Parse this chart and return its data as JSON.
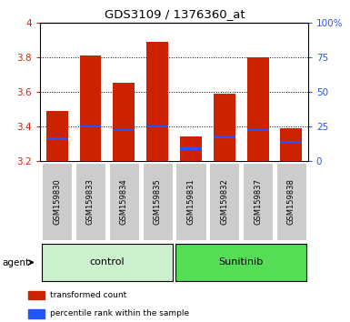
{
  "title": "GDS3109 / 1376360_at",
  "samples": [
    "GSM159830",
    "GSM159833",
    "GSM159834",
    "GSM159835",
    "GSM159831",
    "GSM159832",
    "GSM159837",
    "GSM159838"
  ],
  "red_values": [
    3.49,
    3.81,
    3.65,
    3.89,
    3.34,
    3.59,
    3.8,
    3.39
  ],
  "blue_values": [
    3.33,
    3.4,
    3.38,
    3.4,
    3.27,
    3.34,
    3.38,
    3.31
  ],
  "y_min": 3.2,
  "y_max": 4.0,
  "y_ticks": [
    3.2,
    3.4,
    3.6,
    3.8,
    4.0
  ],
  "y_ticks_labels": [
    "3.2",
    "3.4",
    "3.6",
    "3.8",
    "4"
  ],
  "right_y_ticks": [
    0,
    25,
    50,
    75,
    100
  ],
  "right_y_labels": [
    "0",
    "25",
    "50",
    "75",
    "100%"
  ],
  "groups": [
    {
      "label": "control",
      "indices": [
        0,
        1,
        2,
        3
      ],
      "color": "#ccf0cc"
    },
    {
      "label": "Sunitinib",
      "indices": [
        4,
        5,
        6,
        7
      ],
      "color": "#55dd55"
    }
  ],
  "bar_color": "#cc2200",
  "blue_color": "#2255ff",
  "bar_width": 0.65,
  "background_plot": "#ffffff",
  "tick_color_left": "#cc2200",
  "tick_color_right": "#2255ff",
  "sample_box_color": "#cccccc",
  "agent_label": "agent",
  "legend_red": "transformed count",
  "legend_blue": "percentile rank within the sample"
}
